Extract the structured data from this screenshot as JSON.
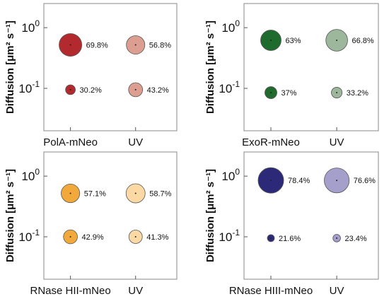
{
  "chart_data": [
    {
      "type": "scatter",
      "title": "",
      "ylabel": "Diffusion [μm² s⁻¹]",
      "yscale": "log",
      "ylim": [
        0.02,
        2.5
      ],
      "y_ticks": [
        {
          "value": 1,
          "base": "10",
          "exp": "0"
        },
        {
          "value": 0.1,
          "base": "10",
          "exp": "-1"
        }
      ],
      "categories": [
        "PolA-mNeo",
        "UV"
      ],
      "grid": false,
      "series": [
        {
          "category": "PolA-mNeo",
          "color": "#b22a2e",
          "points": [
            {
              "y": 0.52,
              "fraction_label": "69.8%"
            },
            {
              "y": 0.095,
              "fraction_label": "30.2%"
            }
          ]
        },
        {
          "category": "UV",
          "color": "#dc9e90",
          "points": [
            {
              "y": 0.52,
              "fraction_label": "56.8%"
            },
            {
              "y": 0.095,
              "fraction_label": "43.2%"
            }
          ]
        }
      ]
    },
    {
      "type": "scatter",
      "title": "",
      "ylabel": "Diffusion [μm² s⁻¹]",
      "yscale": "log",
      "ylim": [
        0.02,
        2.5
      ],
      "y_ticks": [
        {
          "value": 1,
          "base": "10",
          "exp": "0"
        },
        {
          "value": 0.1,
          "base": "10",
          "exp": "-1"
        }
      ],
      "categories": [
        "ExoR-mNeo",
        "UV"
      ],
      "grid": false,
      "series": [
        {
          "category": "ExoR-mNeo",
          "color": "#1f6b2e",
          "points": [
            {
              "y": 0.62,
              "fraction_label": "63%"
            },
            {
              "y": 0.085,
              "fraction_label": "37%"
            }
          ]
        },
        {
          "category": "UV",
          "color": "#9cb79c",
          "points": [
            {
              "y": 0.62,
              "fraction_label": "66.8%"
            },
            {
              "y": 0.085,
              "fraction_label": "33.2%"
            }
          ]
        }
      ]
    },
    {
      "type": "scatter",
      "title": "",
      "ylabel": "Diffusion [μm² s⁻¹]",
      "yscale": "log",
      "ylim": [
        0.02,
        2.5
      ],
      "y_ticks": [
        {
          "value": 1,
          "base": "10",
          "exp": "0"
        },
        {
          "value": 0.1,
          "base": "10",
          "exp": "-1"
        }
      ],
      "categories": [
        "RNase HII-mNeo",
        "UV"
      ],
      "grid": false,
      "series": [
        {
          "category": "RNase HII-mNeo",
          "color": "#f2a93b",
          "points": [
            {
              "y": 0.52,
              "fraction_label": "57.1%"
            },
            {
              "y": 0.1,
              "fraction_label": "42.9%"
            }
          ]
        },
        {
          "category": "UV",
          "color": "#fbd9a4",
          "points": [
            {
              "y": 0.52,
              "fraction_label": "58.7%"
            },
            {
              "y": 0.1,
              "fraction_label": "41.3%"
            }
          ]
        }
      ]
    },
    {
      "type": "scatter",
      "title": "",
      "ylabel": "Diffusion [μm² s⁻¹]",
      "yscale": "log",
      "ylim": [
        0.02,
        2.5
      ],
      "y_ticks": [
        {
          "value": 1,
          "base": "10",
          "exp": "0"
        },
        {
          "value": 0.1,
          "base": "10",
          "exp": "-1"
        }
      ],
      "categories": [
        "RNase HIII-mNeo",
        "UV"
      ],
      "grid": false,
      "series": [
        {
          "category": "RNase HIII-mNeo",
          "color": "#2c2a78",
          "points": [
            {
              "y": 0.85,
              "fraction_label": "78.4%"
            },
            {
              "y": 0.095,
              "fraction_label": "21.6%"
            }
          ]
        },
        {
          "category": "UV",
          "color": "#a49fcb",
          "points": [
            {
              "y": 0.85,
              "fraction_label": "76.6%"
            },
            {
              "y": 0.095,
              "fraction_label": "23.4%"
            }
          ]
        }
      ]
    }
  ]
}
